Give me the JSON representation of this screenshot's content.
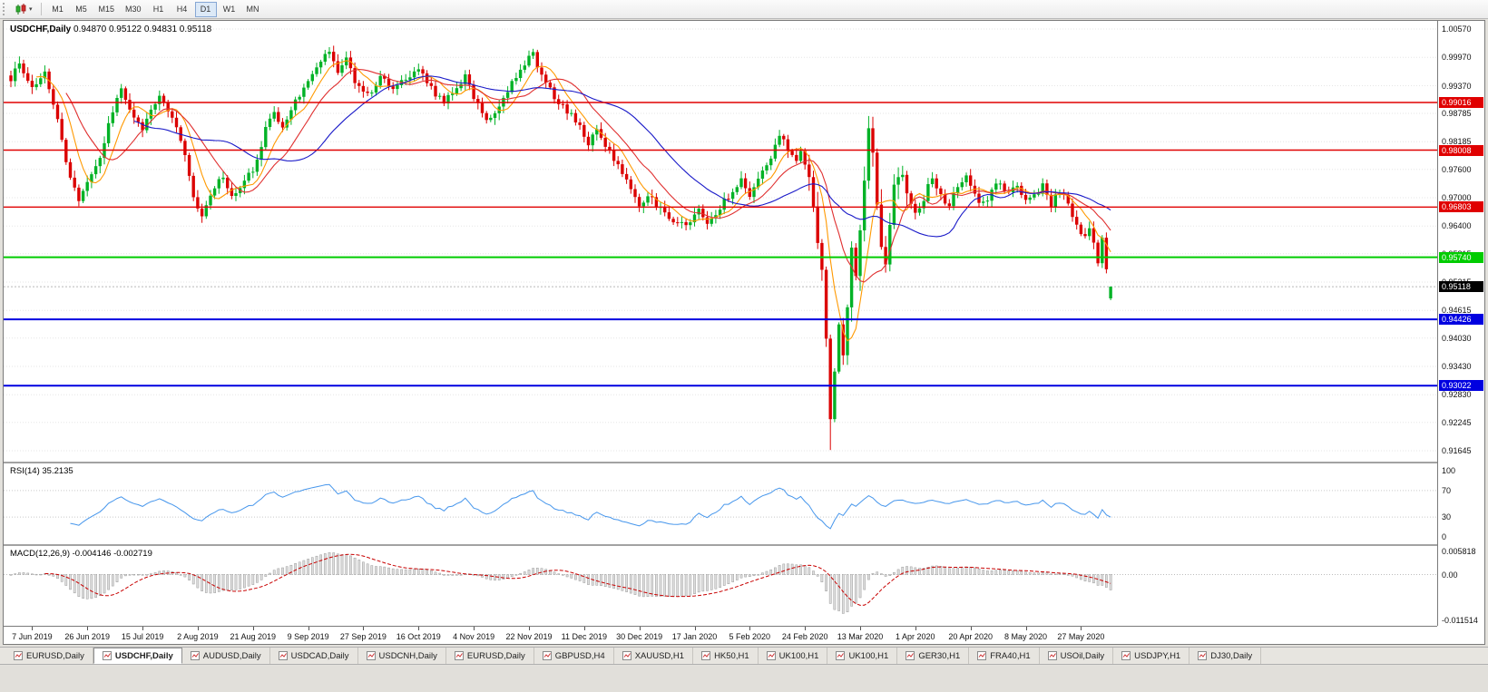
{
  "toolbar": {
    "timeframes": [
      "M1",
      "M5",
      "M15",
      "M30",
      "H1",
      "H4",
      "D1",
      "W1",
      "MN"
    ],
    "active_timeframe": "D1"
  },
  "chart": {
    "symbol_title": "USDCHF,Daily",
    "ohlc_text": "0.94870 0.95122 0.94831 0.95118"
  },
  "indicators": {
    "rsi_label": "RSI(14)",
    "rsi_value": "35.2135",
    "macd_label": "MACD(12,26,9)",
    "macd_values": "-0.004146 -0.002719"
  },
  "chart_data": {
    "type": "candlestick",
    "symbol": "USDCHF",
    "period": "Daily",
    "last_bar": {
      "o": 0.9487,
      "h": 0.95122,
      "l": 0.94831,
      "c": 0.95118
    },
    "bid_price": 0.95118,
    "price_axis_labels": [
      1.0057,
      0.9997,
      0.9937,
      0.98785,
      0.98185,
      0.976,
      0.97,
      0.964,
      0.95815,
      0.95215,
      0.94615,
      0.9403,
      0.9343,
      0.9283,
      0.92245,
      0.91645
    ],
    "date_labels": [
      "7 Jun 2019",
      "26 Jun 2019",
      "15 Jul 2019",
      "2 Aug 2019",
      "21 Aug 2019",
      "9 Sep 2019",
      "27 Sep 2019",
      "16 Oct 2019",
      "4 Nov 2019",
      "22 Nov 2019",
      "11 Dec 2019",
      "30 Dec 2019",
      "17 Jan 2020",
      "5 Feb 2020",
      "24 Feb 2020",
      "13 Mar 2020",
      "1 Apr 2020",
      "20 Apr 2020",
      "8 May 2020",
      "27 May 2020"
    ],
    "hlines": [
      {
        "price": 0.99016,
        "color": "#E00000",
        "width": 1.4
      },
      {
        "price": 0.98008,
        "color": "#E00000",
        "width": 1.4
      },
      {
        "price": 0.96803,
        "color": "#E00000",
        "width": 1.4
      },
      {
        "price": 0.9574,
        "color": "#00CC00",
        "width": 2
      },
      {
        "price": 0.94426,
        "color": "#0000E0",
        "width": 2
      },
      {
        "price": 0.93022,
        "color": "#0000E0",
        "width": 2
      }
    ],
    "num_candles": 260,
    "volatile_range": [
      188,
      212
    ],
    "crash_wick_day": 193,
    "crash_wick_low": 0.9166,
    "waypoints": [
      [
        0,
        0.995
      ],
      [
        2,
        0.9985
      ],
      [
        5,
        0.9935
      ],
      [
        8,
        0.996
      ],
      [
        11,
        0.986
      ],
      [
        14,
        0.974
      ],
      [
        16,
        0.9695
      ],
      [
        18,
        0.973
      ],
      [
        21,
        0.979
      ],
      [
        24,
        0.9885
      ],
      [
        26,
        0.9925
      ],
      [
        29,
        0.987
      ],
      [
        31,
        0.9845
      ],
      [
        33,
        0.988
      ],
      [
        35,
        0.992
      ],
      [
        38,
        0.987
      ],
      [
        41,
        0.979
      ],
      [
        43,
        0.97
      ],
      [
        45,
        0.966
      ],
      [
        47,
        0.971
      ],
      [
        50,
        0.9745
      ],
      [
        52,
        0.9705
      ],
      [
        55,
        0.9735
      ],
      [
        58,
        0.9775
      ],
      [
        60,
        0.9845
      ],
      [
        62,
        0.988
      ],
      [
        64,
        0.985
      ],
      [
        67,
        0.9905
      ],
      [
        70,
        0.9945
      ],
      [
        73,
        0.9985
      ],
      [
        75,
        1.0015
      ],
      [
        77,
        0.9965
      ],
      [
        79,
        0.9995
      ],
      [
        81,
        0.9945
      ],
      [
        84,
        0.9915
      ],
      [
        87,
        0.9955
      ],
      [
        90,
        0.9925
      ],
      [
        93,
        0.9955
      ],
      [
        96,
        0.9975
      ],
      [
        99,
        0.993
      ],
      [
        102,
        0.99
      ],
      [
        105,
        0.9935
      ],
      [
        107,
        0.9955
      ],
      [
        110,
        0.9895
      ],
      [
        112,
        0.9865
      ],
      [
        115,
        0.9895
      ],
      [
        118,
        0.994
      ],
      [
        121,
        0.9985
      ],
      [
        123,
        1.0005
      ],
      [
        125,
        0.9955
      ],
      [
        128,
        0.9915
      ],
      [
        131,
        0.9885
      ],
      [
        134,
        0.985
      ],
      [
        136,
        0.9815
      ],
      [
        138,
        0.9845
      ],
      [
        141,
        0.9795
      ],
      [
        143,
        0.9765
      ],
      [
        146,
        0.9715
      ],
      [
        148,
        0.968
      ],
      [
        150,
        0.9705
      ],
      [
        153,
        0.9675
      ],
      [
        156,
        0.965
      ],
      [
        159,
        0.964
      ],
      [
        162,
        0.967
      ],
      [
        164,
        0.9645
      ],
      [
        167,
        0.968
      ],
      [
        170,
        0.9715
      ],
      [
        172,
        0.9735
      ],
      [
        174,
        0.9705
      ],
      [
        176,
        0.9745
      ],
      [
        179,
        0.9785
      ],
      [
        181,
        0.9835
      ],
      [
        183,
        0.9805
      ],
      [
        185,
        0.9775
      ],
      [
        186,
        0.98
      ],
      [
        188,
        0.9745
      ],
      [
        189,
        0.969
      ],
      [
        190,
        0.961
      ],
      [
        191,
        0.953
      ],
      [
        192,
        0.94
      ],
      [
        193,
        0.925
      ],
      [
        194,
        0.933
      ],
      [
        195,
        0.943
      ],
      [
        196,
        0.937
      ],
      [
        197,
        0.948
      ],
      [
        198,
        0.958
      ],
      [
        199,
        0.953
      ],
      [
        200,
        0.964
      ],
      [
        201,
        0.974
      ],
      [
        202,
        0.986
      ],
      [
        203,
        0.98
      ],
      [
        204,
        0.97
      ],
      [
        205,
        0.958
      ],
      [
        206,
        0.9545
      ],
      [
        207,
        0.965
      ],
      [
        208,
        0.9725
      ],
      [
        209,
        0.976
      ],
      [
        211,
        0.97
      ],
      [
        213,
        0.9665
      ],
      [
        215,
        0.97
      ],
      [
        217,
        0.9745
      ],
      [
        219,
        0.9705
      ],
      [
        221,
        0.9685
      ],
      [
        223,
        0.972
      ],
      [
        225,
        0.975
      ],
      [
        227,
        0.9705
      ],
      [
        229,
        0.9685
      ],
      [
        231,
        0.9715
      ],
      [
        233,
        0.9735
      ],
      [
        235,
        0.9705
      ],
      [
        237,
        0.9725
      ],
      [
        239,
        0.9695
      ],
      [
        241,
        0.9705
      ],
      [
        243,
        0.9725
      ],
      [
        245,
        0.9685
      ],
      [
        247,
        0.9715
      ],
      [
        249,
        0.9685
      ],
      [
        251,
        0.9645
      ],
      [
        253,
        0.9615
      ],
      [
        254,
        0.964
      ],
      [
        255,
        0.96
      ],
      [
        256,
        0.956
      ],
      [
        257,
        0.9615
      ],
      [
        258,
        0.9545
      ],
      [
        259,
        0.9512
      ]
    ],
    "ma_lines": [
      {
        "period": 7,
        "color": "#FF9900",
        "type": "SMA"
      },
      {
        "period": 14,
        "color": "#E03030",
        "type": "SMA"
      },
      {
        "period": 30,
        "color": "#1919C8",
        "type": "SMA"
      }
    ],
    "colors": {
      "bull": "#00B226",
      "bear": "#DB0000",
      "grid": "#E6E6E6",
      "rsi_line": "#4696EC",
      "macd_hist_fill": "#DEDEDE",
      "macd_hist_stroke": "#9A9A9A",
      "macd_signal": "#C80000",
      "bid_line": "#B8B8B8"
    },
    "rsi": {
      "period": 14,
      "levels": [
        100,
        70,
        30,
        0
      ],
      "current": 35.2135
    },
    "macd": {
      "fast": 12,
      "slow": 26,
      "signal": 9,
      "axis_labels": [
        "0.005818",
        "0.00",
        "-0.011514"
      ],
      "axis_max": 0.005818,
      "axis_min": -0.011514,
      "current_main": -0.004146,
      "current_signal": -0.002719
    }
  },
  "tabs": [
    {
      "label": "EURUSD,Daily",
      "active": false
    },
    {
      "label": "USDCHF,Daily",
      "active": true
    },
    {
      "label": "AUDUSD,Daily",
      "active": false
    },
    {
      "label": "USDCAD,Daily",
      "active": false
    },
    {
      "label": "USDCNH,Daily",
      "active": false
    },
    {
      "label": "EURUSD,Daily",
      "active": false
    },
    {
      "label": "GBPUSD,H4",
      "active": false
    },
    {
      "label": "XAUUSD,H1",
      "active": false
    },
    {
      "label": "HK50,H1",
      "active": false
    },
    {
      "label": "UK100,H1",
      "active": false
    },
    {
      "label": "UK100,H1",
      "active": false
    },
    {
      "label": "GER30,H1",
      "active": false
    },
    {
      "label": "FRA40,H1",
      "active": false
    },
    {
      "label": "USOil,Daily",
      "active": false
    },
    {
      "label": "USDJPY,H1",
      "active": false
    },
    {
      "label": "DJ30,Daily",
      "active": false
    }
  ]
}
